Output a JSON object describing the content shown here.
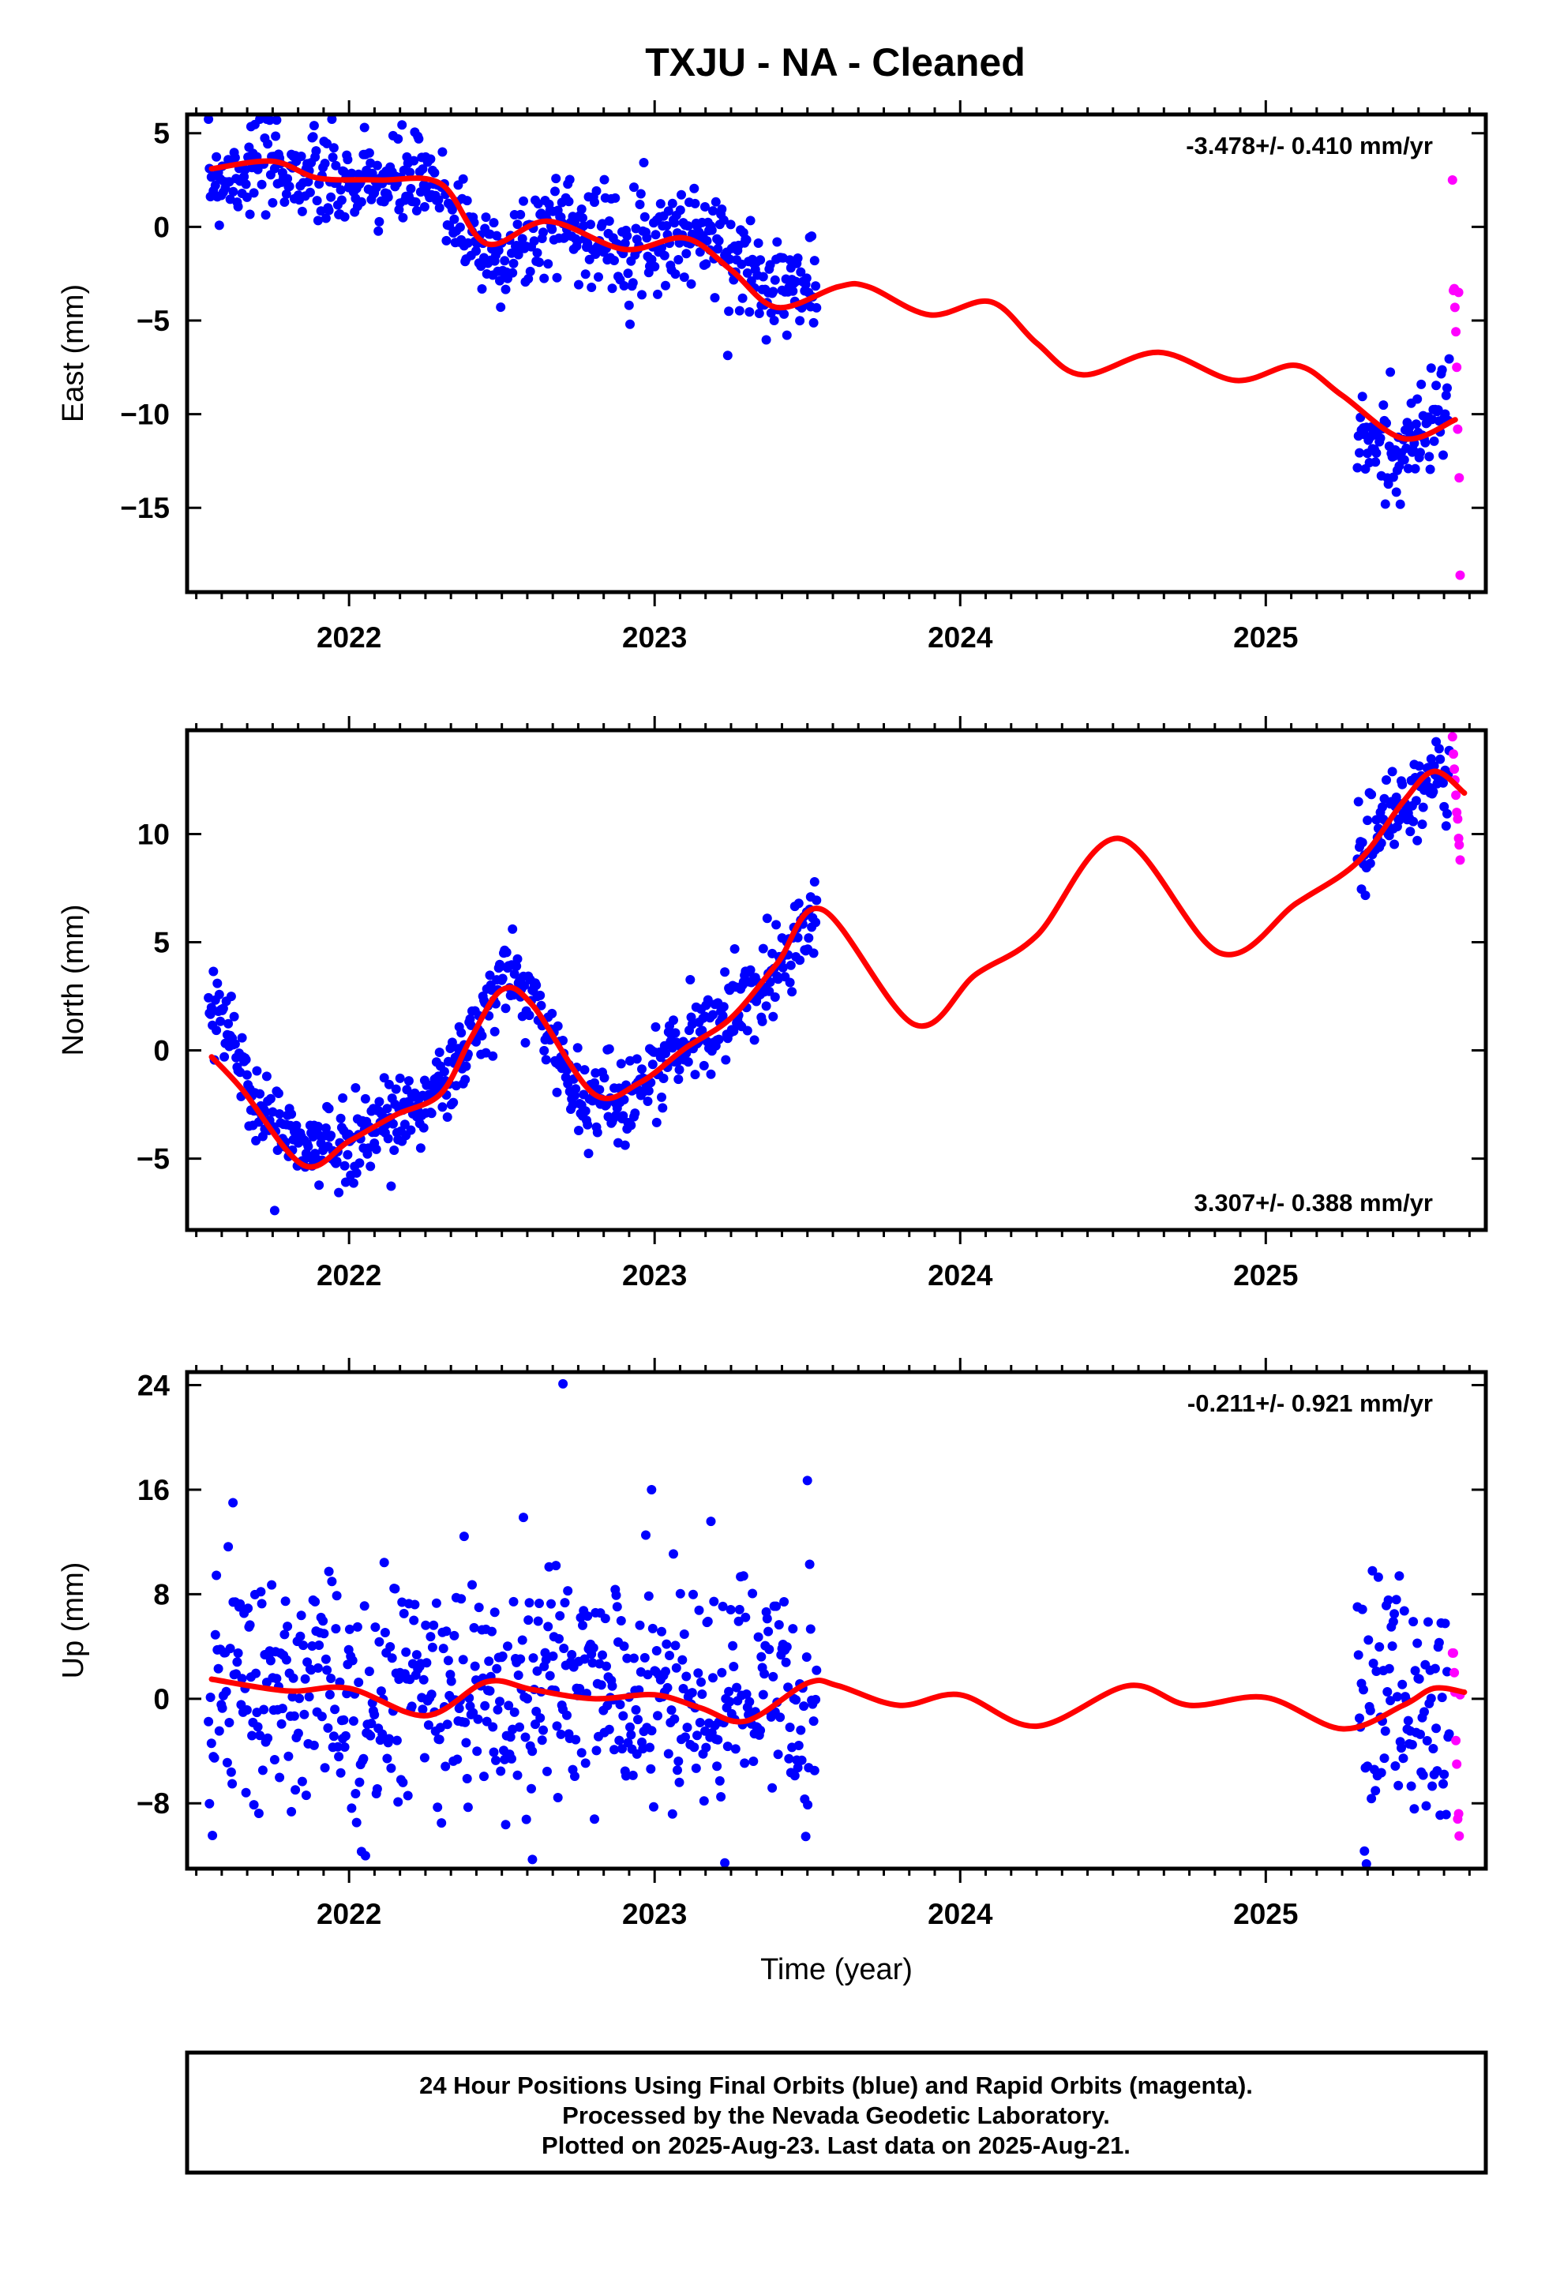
{
  "title": "TXJU  - NA - Cleaned",
  "footer": {
    "lines": [
      "24 Hour Positions Using Final Orbits (blue) and Rapid Orbits (magenta).",
      "Processed by the Nevada Geodetic Laboratory.",
      "Plotted on 2025-Aug-23. Last data on 2025-Aug-21."
    ]
  },
  "colors": {
    "final": "#0000ff",
    "rapid": "#ff00ff",
    "model": "#ff0000",
    "frame": "#000000"
  },
  "chart_data": [
    {
      "type": "scatter",
      "ylabel": "East (mm)",
      "xlabel": "",
      "rate": "-3.478+/- 0.410 mm/yr",
      "rate_position": "top-right",
      "xlim": [
        2021.47,
        2025.72
      ],
      "ylim": [
        -19.5,
        6.0
      ],
      "yticks": [
        5,
        0,
        -5,
        -10,
        -15
      ],
      "ytick_labels": [
        "5",
        "0",
        "−5",
        "−10",
        "−15"
      ],
      "xticks": [
        2022,
        2023,
        2024,
        2025
      ],
      "xtick_labels": [
        "2022",
        "2023",
        "2024",
        "2025"
      ],
      "rapid_points": {
        "x": [
          2025.611,
          2025.614,
          2025.617,
          2025.619,
          2025.622,
          2025.625,
          2025.628,
          2025.631,
          2025.633,
          2025.636
        ],
        "y": [
          2.5,
          -3.4,
          -3.3,
          -4.3,
          -5.6,
          -7.5,
          -10.8,
          -3.5,
          -13.4,
          -18.6
        ]
      },
      "model": {
        "x": [
          2021.55,
          2021.75,
          2021.9,
          2022.1,
          2022.3,
          2022.45,
          2022.65,
          2022.9,
          2023.1,
          2023.25,
          2023.4,
          2023.6,
          2023.7,
          2023.9,
          2024.1,
          2024.25,
          2024.4,
          2024.65,
          2024.9,
          2025.1,
          2025.25,
          2025.45,
          2025.62
        ],
        "y": [
          3.1,
          3.5,
          2.6,
          2.5,
          2.3,
          -0.9,
          0.3,
          -1.2,
          -0.6,
          -2.3,
          -4.3,
          -3.2,
          -3.2,
          -4.7,
          -4.0,
          -6.2,
          -7.9,
          -6.7,
          -8.2,
          -7.4,
          -9.0,
          -11.3,
          -10.3
        ]
      },
      "final_segments": [
        {
          "x0": 2021.54,
          "x1": 2023.53,
          "trend": [
            [
              2021.54,
              2.6
            ],
            [
              2021.75,
              3.4
            ],
            [
              2021.92,
              2.3
            ],
            [
              2022.05,
              2.1
            ],
            [
              2022.2,
              2.5
            ],
            [
              2022.3,
              1.8
            ],
            [
              2022.45,
              -1.5
            ],
            [
              2022.55,
              -1.2
            ],
            [
              2022.7,
              0.6
            ],
            [
              2022.85,
              -0.8
            ],
            [
              2023.0,
              -0.5
            ],
            [
              2023.15,
              -0.3
            ],
            [
              2023.3,
              -2.0
            ],
            [
              2023.45,
              -3.4
            ],
            [
              2023.53,
              -3.0
            ]
          ],
          "sd": 1.3
        },
        {
          "x0": 2025.3,
          "x1": 2025.6,
          "trend": [
            [
              2025.3,
              -11.5
            ],
            [
              2025.45,
              -12.0
            ],
            [
              2025.6,
              -9.5
            ]
          ],
          "sd": 1.3
        }
      ]
    },
    {
      "type": "scatter",
      "ylabel": "North (mm)",
      "xlabel": "",
      "rate": "3.307+/- 0.388 mm/yr",
      "rate_position": "bottom-right",
      "xlim": [
        2021.47,
        2025.72
      ],
      "ylim": [
        -8.3,
        14.8
      ],
      "yticks": [
        10,
        5,
        0,
        -5
      ],
      "ytick_labels": [
        "10",
        "5",
        "0",
        "−5"
      ],
      "xticks": [
        2022,
        2023,
        2024,
        2025
      ],
      "xtick_labels": [
        "2022",
        "2023",
        "2024",
        "2025"
      ],
      "rapid_points": {
        "x": [
          2025.611,
          2025.614,
          2025.617,
          2025.619,
          2025.622,
          2025.625,
          2025.628,
          2025.631,
          2025.633,
          2025.636
        ],
        "y": [
          14.5,
          13.7,
          13.0,
          12.5,
          11.8,
          11.0,
          10.7,
          9.8,
          9.5,
          8.8
        ]
      },
      "model": {
        "x": [
          2021.55,
          2021.65,
          2021.85,
          2022.0,
          2022.15,
          2022.3,
          2022.4,
          2022.5,
          2022.6,
          2022.8,
          2022.95,
          2023.1,
          2023.25,
          2023.4,
          2023.55,
          2023.85,
          2024.05,
          2024.25,
          2024.52,
          2024.85,
          2025.1,
          2025.3,
          2025.45,
          2025.55,
          2025.65
        ],
        "y": [
          -0.3,
          -1.8,
          -5.3,
          -4.2,
          -3.0,
          -2.0,
          0.6,
          2.8,
          2.1,
          -2.0,
          -1.5,
          0.1,
          1.5,
          4.0,
          6.5,
          1.2,
          3.5,
          5.3,
          9.8,
          4.5,
          6.8,
          8.7,
          11.5,
          12.9,
          11.9
        ]
      },
      "final_segments": [
        {
          "x0": 2021.54,
          "x1": 2023.53,
          "trend": [
            [
              2021.54,
              2.4
            ],
            [
              2021.6,
              1.0
            ],
            [
              2021.7,
              -2.6
            ],
            [
              2021.85,
              -4.6
            ],
            [
              2022.0,
              -4.2
            ],
            [
              2022.15,
              -3.0
            ],
            [
              2022.3,
              -1.9
            ],
            [
              2022.45,
              1.6
            ],
            [
              2022.52,
              3.6
            ],
            [
              2022.6,
              2.4
            ],
            [
              2022.75,
              -2.1
            ],
            [
              2022.9,
              -2.3
            ],
            [
              2023.1,
              0.4
            ],
            [
              2023.3,
              2.2
            ],
            [
              2023.53,
              6.6
            ]
          ],
          "sd": 1.0
        },
        {
          "x0": 2025.3,
          "x1": 2025.6,
          "trend": [
            [
              2025.3,
              8.8
            ],
            [
              2025.45,
              11.5
            ],
            [
              2025.6,
              12.6
            ]
          ],
          "sd": 1.0
        }
      ]
    },
    {
      "type": "scatter",
      "ylabel": "Up (mm)",
      "xlabel": "Time (year)",
      "rate": "-0.211+/- 0.921 mm/yr",
      "rate_position": "top-right",
      "xlim": [
        2021.47,
        2025.72
      ],
      "ylim": [
        -13.0,
        25.0
      ],
      "yticks": [
        24,
        16,
        8,
        0,
        -8
      ],
      "ytick_labels": [
        "24",
        "16",
        "8",
        "0",
        "−8"
      ],
      "xticks": [
        2022,
        2023,
        2024,
        2025
      ],
      "xtick_labels": [
        "2022",
        "2023",
        "2024",
        "2025"
      ],
      "rapid_points": {
        "x": [
          2025.611,
          2025.614,
          2025.617,
          2025.619,
          2025.622,
          2025.625,
          2025.628,
          2025.631,
          2025.633,
          2025.636
        ],
        "y": [
          3.5,
          3.5,
          2.0,
          0.5,
          -3.2,
          -5.0,
          -9.2,
          -8.8,
          -10.5,
          0.3
        ]
      },
      "model": {
        "x": [
          2021.55,
          2021.8,
          2022.0,
          2022.25,
          2022.45,
          2022.6,
          2022.8,
          2023.0,
          2023.15,
          2023.3,
          2023.5,
          2023.6,
          2023.8,
          2024.0,
          2024.25,
          2024.55,
          2024.75,
          2025.0,
          2025.25,
          2025.45,
          2025.55,
          2025.65
        ],
        "y": [
          1.5,
          0.6,
          0.8,
          -1.3,
          1.3,
          0.7,
          0.0,
          0.3,
          -0.7,
          -1.7,
          1.2,
          1.0,
          -0.5,
          0.3,
          -2.1,
          1.0,
          -0.5,
          0.1,
          -2.3,
          -0.5,
          0.8,
          0.5
        ]
      },
      "final_segments": [
        {
          "x0": 2021.54,
          "x1": 2023.53,
          "trend": [
            [
              2021.54,
              0.5
            ],
            [
              2022.0,
              0.0
            ],
            [
              2022.5,
              1.0
            ],
            [
              2023.0,
              0.2
            ],
            [
              2023.53,
              -0.5
            ]
          ],
          "sd": 4.5
        },
        {
          "x0": 2025.3,
          "x1": 2025.6,
          "trend": [
            [
              2025.3,
              0.0
            ],
            [
              2025.6,
              -1.0
            ]
          ],
          "sd": 4.5
        }
      ],
      "outliers": {
        "x": [
          2022.7,
          2022.6,
          2023.5,
          2021.62,
          2022.99
        ],
        "y": [
          24.1,
          -12.3,
          16.7,
          15.0,
          16.0
        ]
      }
    }
  ]
}
